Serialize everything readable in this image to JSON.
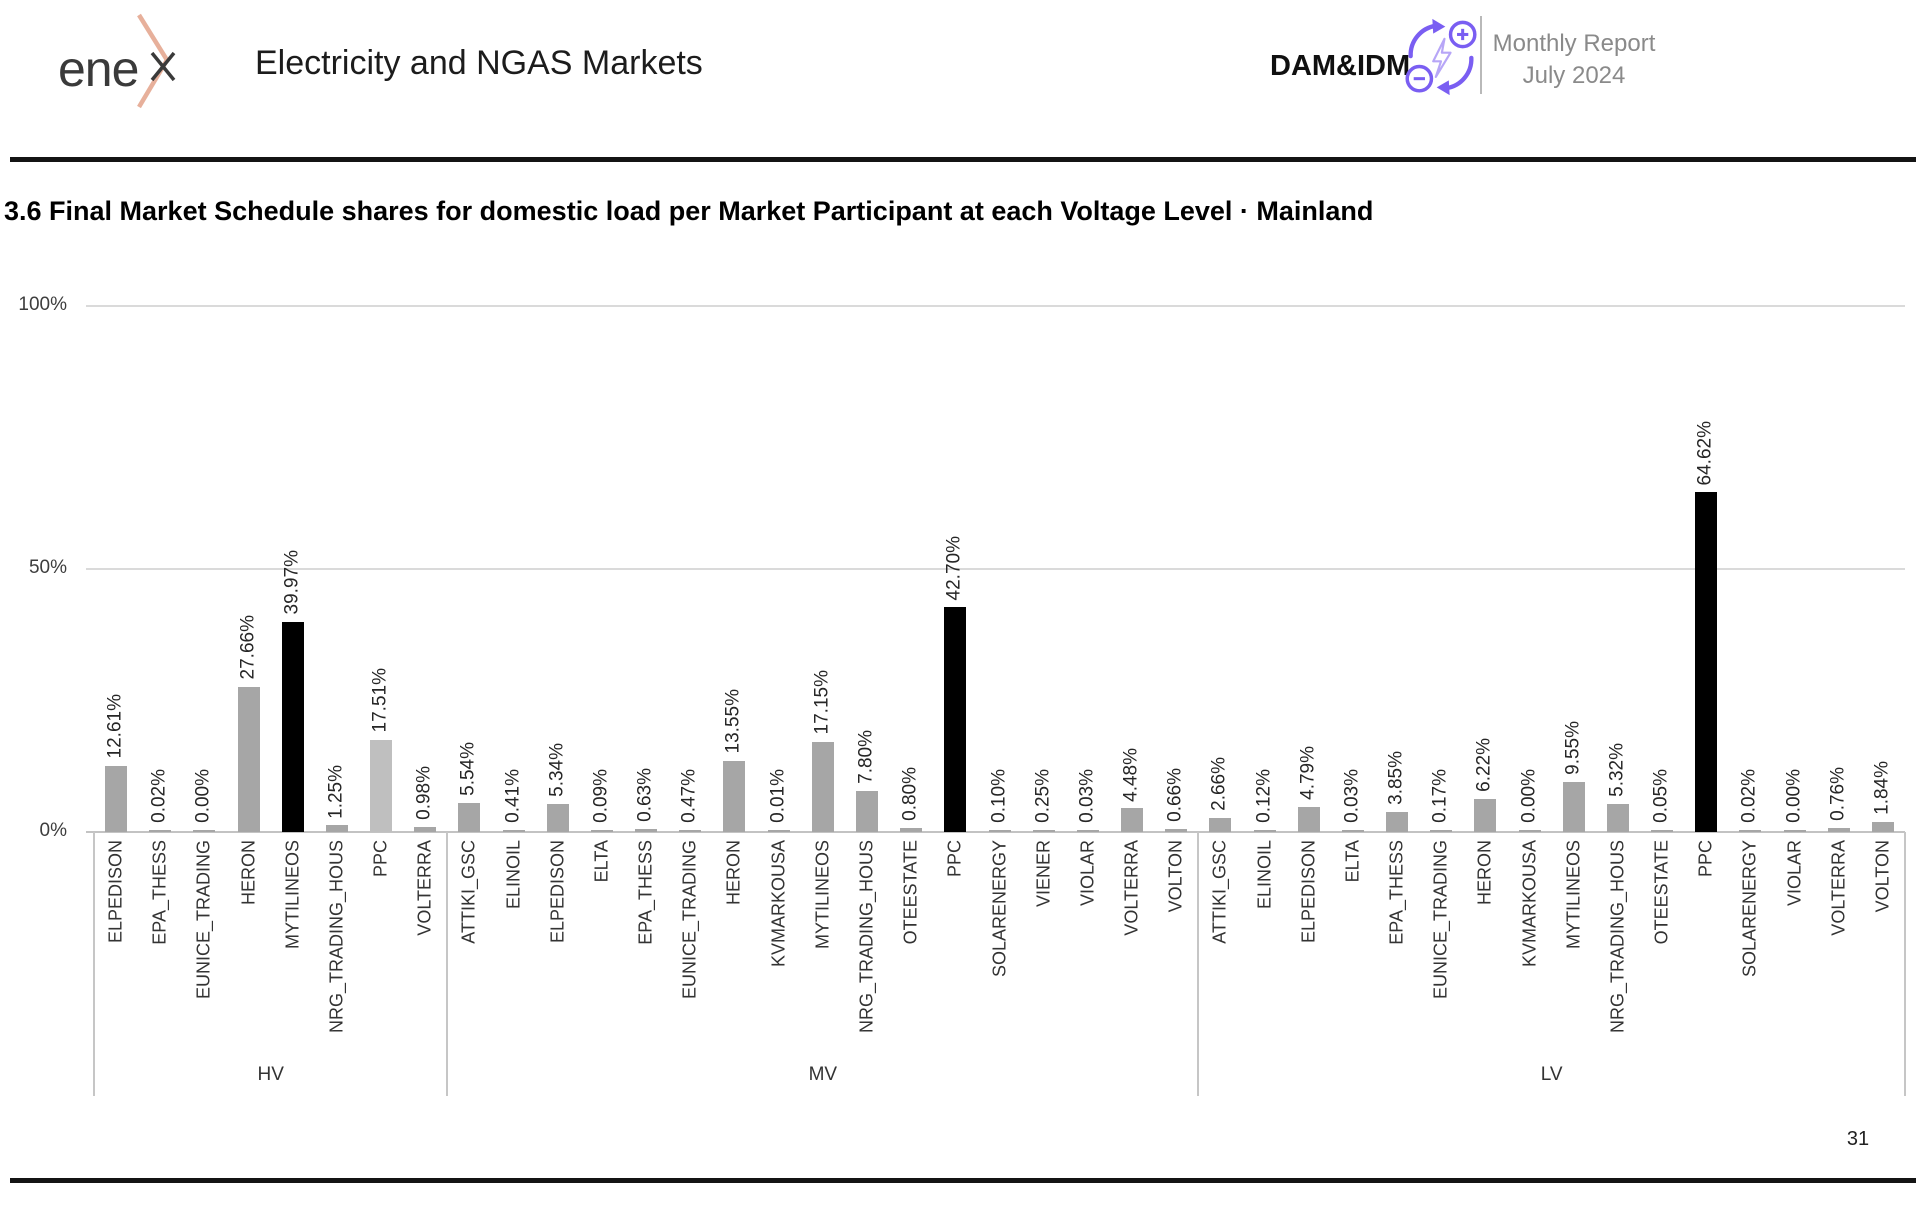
{
  "header": {
    "logo_text": "ene",
    "title": "Electricity and NGAS Markets",
    "market_label": "DAM&IDM",
    "report_name": "Monthly Report",
    "report_period": "July 2024",
    "accent_color": "#7a5ef2",
    "logo_accent_color": "#e7b09b"
  },
  "section": {
    "heading": "3.6 Final Market Schedule shares for  domestic load per Market Participant at each Voltage Level · Mainland"
  },
  "footer": {
    "page_number": "31"
  },
  "chart_data": {
    "type": "bar",
    "title": "Final Market Schedule shares for domestic load per Market Participant at each Voltage Level · Mainland",
    "xlabel": "",
    "ylabel": "",
    "ylim": [
      0,
      100
    ],
    "grid": "horizontal",
    "legend_position": "none",
    "bar_colors": {
      "default": "#a6a6a6",
      "max_in_group": "#000000",
      "light": "#bfbfbf"
    },
    "yticks": [
      {
        "label": "100%",
        "value": 100
      },
      {
        "label": "50%",
        "value": 50
      },
      {
        "label": "0%",
        "value": 0
      }
    ],
    "groups": [
      {
        "label": "HV",
        "bars": [
          {
            "participant": "ELPEDISON",
            "value": 12.61,
            "label": "12.61%",
            "color": "#a6a6a6"
          },
          {
            "participant": "EPA_THESS",
            "value": 0.02,
            "label": "0.02%",
            "color": "#a6a6a6"
          },
          {
            "participant": "EUNICE_TRADING",
            "value": 0.0,
            "label": "0.00%",
            "color": "#a6a6a6"
          },
          {
            "participant": "HERON",
            "value": 27.66,
            "label": "27.66%",
            "color": "#a6a6a6"
          },
          {
            "participant": "MYTILINEOS",
            "value": 39.97,
            "label": "39.97%",
            "color": "#000000"
          },
          {
            "participant": "NRG_TRADING_HOUS",
            "value": 1.25,
            "label": "1.25%",
            "color": "#a6a6a6"
          },
          {
            "participant": "PPC",
            "value": 17.51,
            "label": "17.51%",
            "color": "#bfbfbf"
          },
          {
            "participant": "VOLTERRA",
            "value": 0.98,
            "label": "0.98%",
            "color": "#a6a6a6"
          }
        ]
      },
      {
        "label": "MV",
        "bars": [
          {
            "participant": "ATTIKI_GSC",
            "value": 5.54,
            "label": "5.54%",
            "color": "#a6a6a6"
          },
          {
            "participant": "ELINOIL",
            "value": 0.41,
            "label": "0.41%",
            "color": "#a6a6a6"
          },
          {
            "participant": "ELPEDISON",
            "value": 5.34,
            "label": "5.34%",
            "color": "#a6a6a6"
          },
          {
            "participant": "ELTA",
            "value": 0.09,
            "label": "0.09%",
            "color": "#a6a6a6"
          },
          {
            "participant": "EPA_THESS",
            "value": 0.63,
            "label": "0.63%",
            "color": "#a6a6a6"
          },
          {
            "participant": "EUNICE_TRADING",
            "value": 0.47,
            "label": "0.47%",
            "color": "#a6a6a6"
          },
          {
            "participant": "HERON",
            "value": 13.55,
            "label": "13.55%",
            "color": "#a6a6a6"
          },
          {
            "participant": "KVMARKOUSA",
            "value": 0.01,
            "label": "0.01%",
            "color": "#a6a6a6"
          },
          {
            "participant": "MYTILINEOS",
            "value": 17.15,
            "label": "17.15%",
            "color": "#a6a6a6"
          },
          {
            "participant": "NRG_TRADING_HOUS",
            "value": 7.8,
            "label": "7.80%",
            "color": "#a6a6a6"
          },
          {
            "participant": "OTEESTATE",
            "value": 0.8,
            "label": "0.80%",
            "color": "#a6a6a6"
          },
          {
            "participant": "PPC",
            "value": 42.7,
            "label": "42.70%",
            "color": "#000000"
          },
          {
            "participant": "SOLARENERGY",
            "value": 0.1,
            "label": "0.10%",
            "color": "#a6a6a6"
          },
          {
            "participant": "VIENER",
            "value": 0.25,
            "label": "0.25%",
            "color": "#a6a6a6"
          },
          {
            "participant": "VIOLAR",
            "value": 0.03,
            "label": "0.03%",
            "color": "#a6a6a6"
          },
          {
            "participant": "VOLTERRA",
            "value": 4.48,
            "label": "4.48%",
            "color": "#a6a6a6"
          },
          {
            "participant": "VOLTON",
            "value": 0.66,
            "label": "0.66%",
            "color": "#a6a6a6"
          }
        ]
      },
      {
        "label": "LV",
        "bars": [
          {
            "participant": "ATTIKI_GSC",
            "value": 2.66,
            "label": "2.66%",
            "color": "#a6a6a6"
          },
          {
            "participant": "ELINOIL",
            "value": 0.12,
            "label": "0.12%",
            "color": "#a6a6a6"
          },
          {
            "participant": "ELPEDISON",
            "value": 4.79,
            "label": "4.79%",
            "color": "#a6a6a6"
          },
          {
            "participant": "ELTA",
            "value": 0.03,
            "label": "0.03%",
            "color": "#a6a6a6"
          },
          {
            "participant": "EPA_THESS",
            "value": 3.85,
            "label": "3.85%",
            "color": "#a6a6a6"
          },
          {
            "participant": "EUNICE_TRADING",
            "value": 0.17,
            "label": "0.17%",
            "color": "#a6a6a6"
          },
          {
            "participant": "HERON",
            "value": 6.22,
            "label": "6.22%",
            "color": "#a6a6a6"
          },
          {
            "participant": "KVMARKOUSA",
            "value": 0.0,
            "label": "0.00%",
            "color": "#a6a6a6"
          },
          {
            "participant": "MYTILINEOS",
            "value": 9.55,
            "label": "9.55%",
            "color": "#a6a6a6"
          },
          {
            "participant": "NRG_TRADING_HOUS",
            "value": 5.32,
            "label": "5.32%",
            "color": "#a6a6a6"
          },
          {
            "participant": "OTEESTATE",
            "value": 0.05,
            "label": "0.05%",
            "color": "#a6a6a6"
          },
          {
            "participant": "PPC",
            "value": 64.62,
            "label": "64.62%",
            "color": "#000000"
          },
          {
            "participant": "SOLARENERGY",
            "value": 0.02,
            "label": "0.02%",
            "color": "#a6a6a6"
          },
          {
            "participant": "VIOLAR",
            "value": 0.0,
            "label": "0.00%",
            "color": "#a6a6a6"
          },
          {
            "participant": "VOLTERRA",
            "value": 0.76,
            "label": "0.76%",
            "color": "#a6a6a6"
          },
          {
            "participant": "VOLTON",
            "value": 1.84,
            "label": "1.84%",
            "color": "#a6a6a6"
          }
        ]
      }
    ]
  }
}
